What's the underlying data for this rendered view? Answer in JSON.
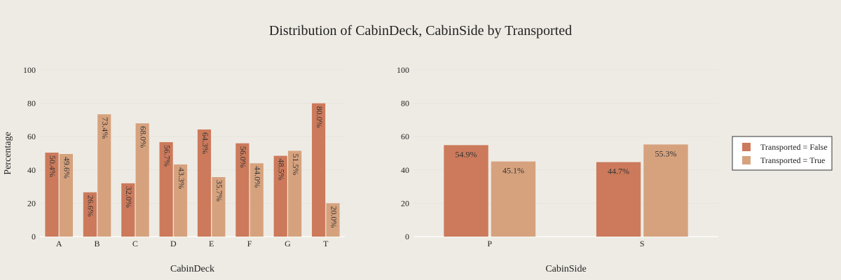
{
  "title": "Distribution of CabinDeck, CabinSide by Transported",
  "colors": {
    "false": "#cc7a5b",
    "true": "#d6a27e",
    "background": "#eeebe4"
  },
  "legend": {
    "placement": "right",
    "entries": [
      "Transported = False",
      "Transported = True"
    ]
  },
  "chart_data": [
    {
      "type": "bar",
      "xlabel": "CabinDeck",
      "ylabel": "Percentage",
      "ylim": [
        0,
        100
      ],
      "yticks": [
        "0",
        "20",
        "40",
        "60",
        "80",
        "100"
      ],
      "categories": [
        "A",
        "B",
        "C",
        "D",
        "E",
        "F",
        "G",
        "T"
      ],
      "label_orientation": "vertical",
      "series": [
        {
          "name": "Transported = False",
          "values": [
            50.4,
            26.6,
            32.0,
            56.7,
            64.3,
            56.0,
            48.5,
            80.0
          ],
          "labels": [
            "50.4%",
            "26.6%",
            "32.0%",
            "56.7%",
            "64.3%",
            "56.0%",
            "48.5%",
            "80.0%"
          ]
        },
        {
          "name": "Transported = True",
          "values": [
            49.6,
            73.4,
            68.0,
            43.3,
            35.7,
            44.0,
            51.5,
            20.0
          ],
          "labels": [
            "49.6%",
            "73.4%",
            "68.0%",
            "43.3%",
            "35.7%",
            "44.0%",
            "51.5%",
            "20.0%"
          ]
        }
      ]
    },
    {
      "type": "bar",
      "xlabel": "CabinSide",
      "ylabel": "",
      "ylim": [
        0,
        100
      ],
      "yticks": [
        "0",
        "20",
        "40",
        "60",
        "80",
        "100"
      ],
      "categories": [
        "P",
        "S"
      ],
      "label_orientation": "horizontal",
      "series": [
        {
          "name": "Transported = False",
          "values": [
            54.9,
            44.7
          ],
          "labels": [
            "54.9%",
            "44.7%"
          ]
        },
        {
          "name": "Transported = True",
          "values": [
            45.1,
            55.3
          ],
          "labels": [
            "45.1%",
            "55.3%"
          ]
        }
      ]
    }
  ]
}
